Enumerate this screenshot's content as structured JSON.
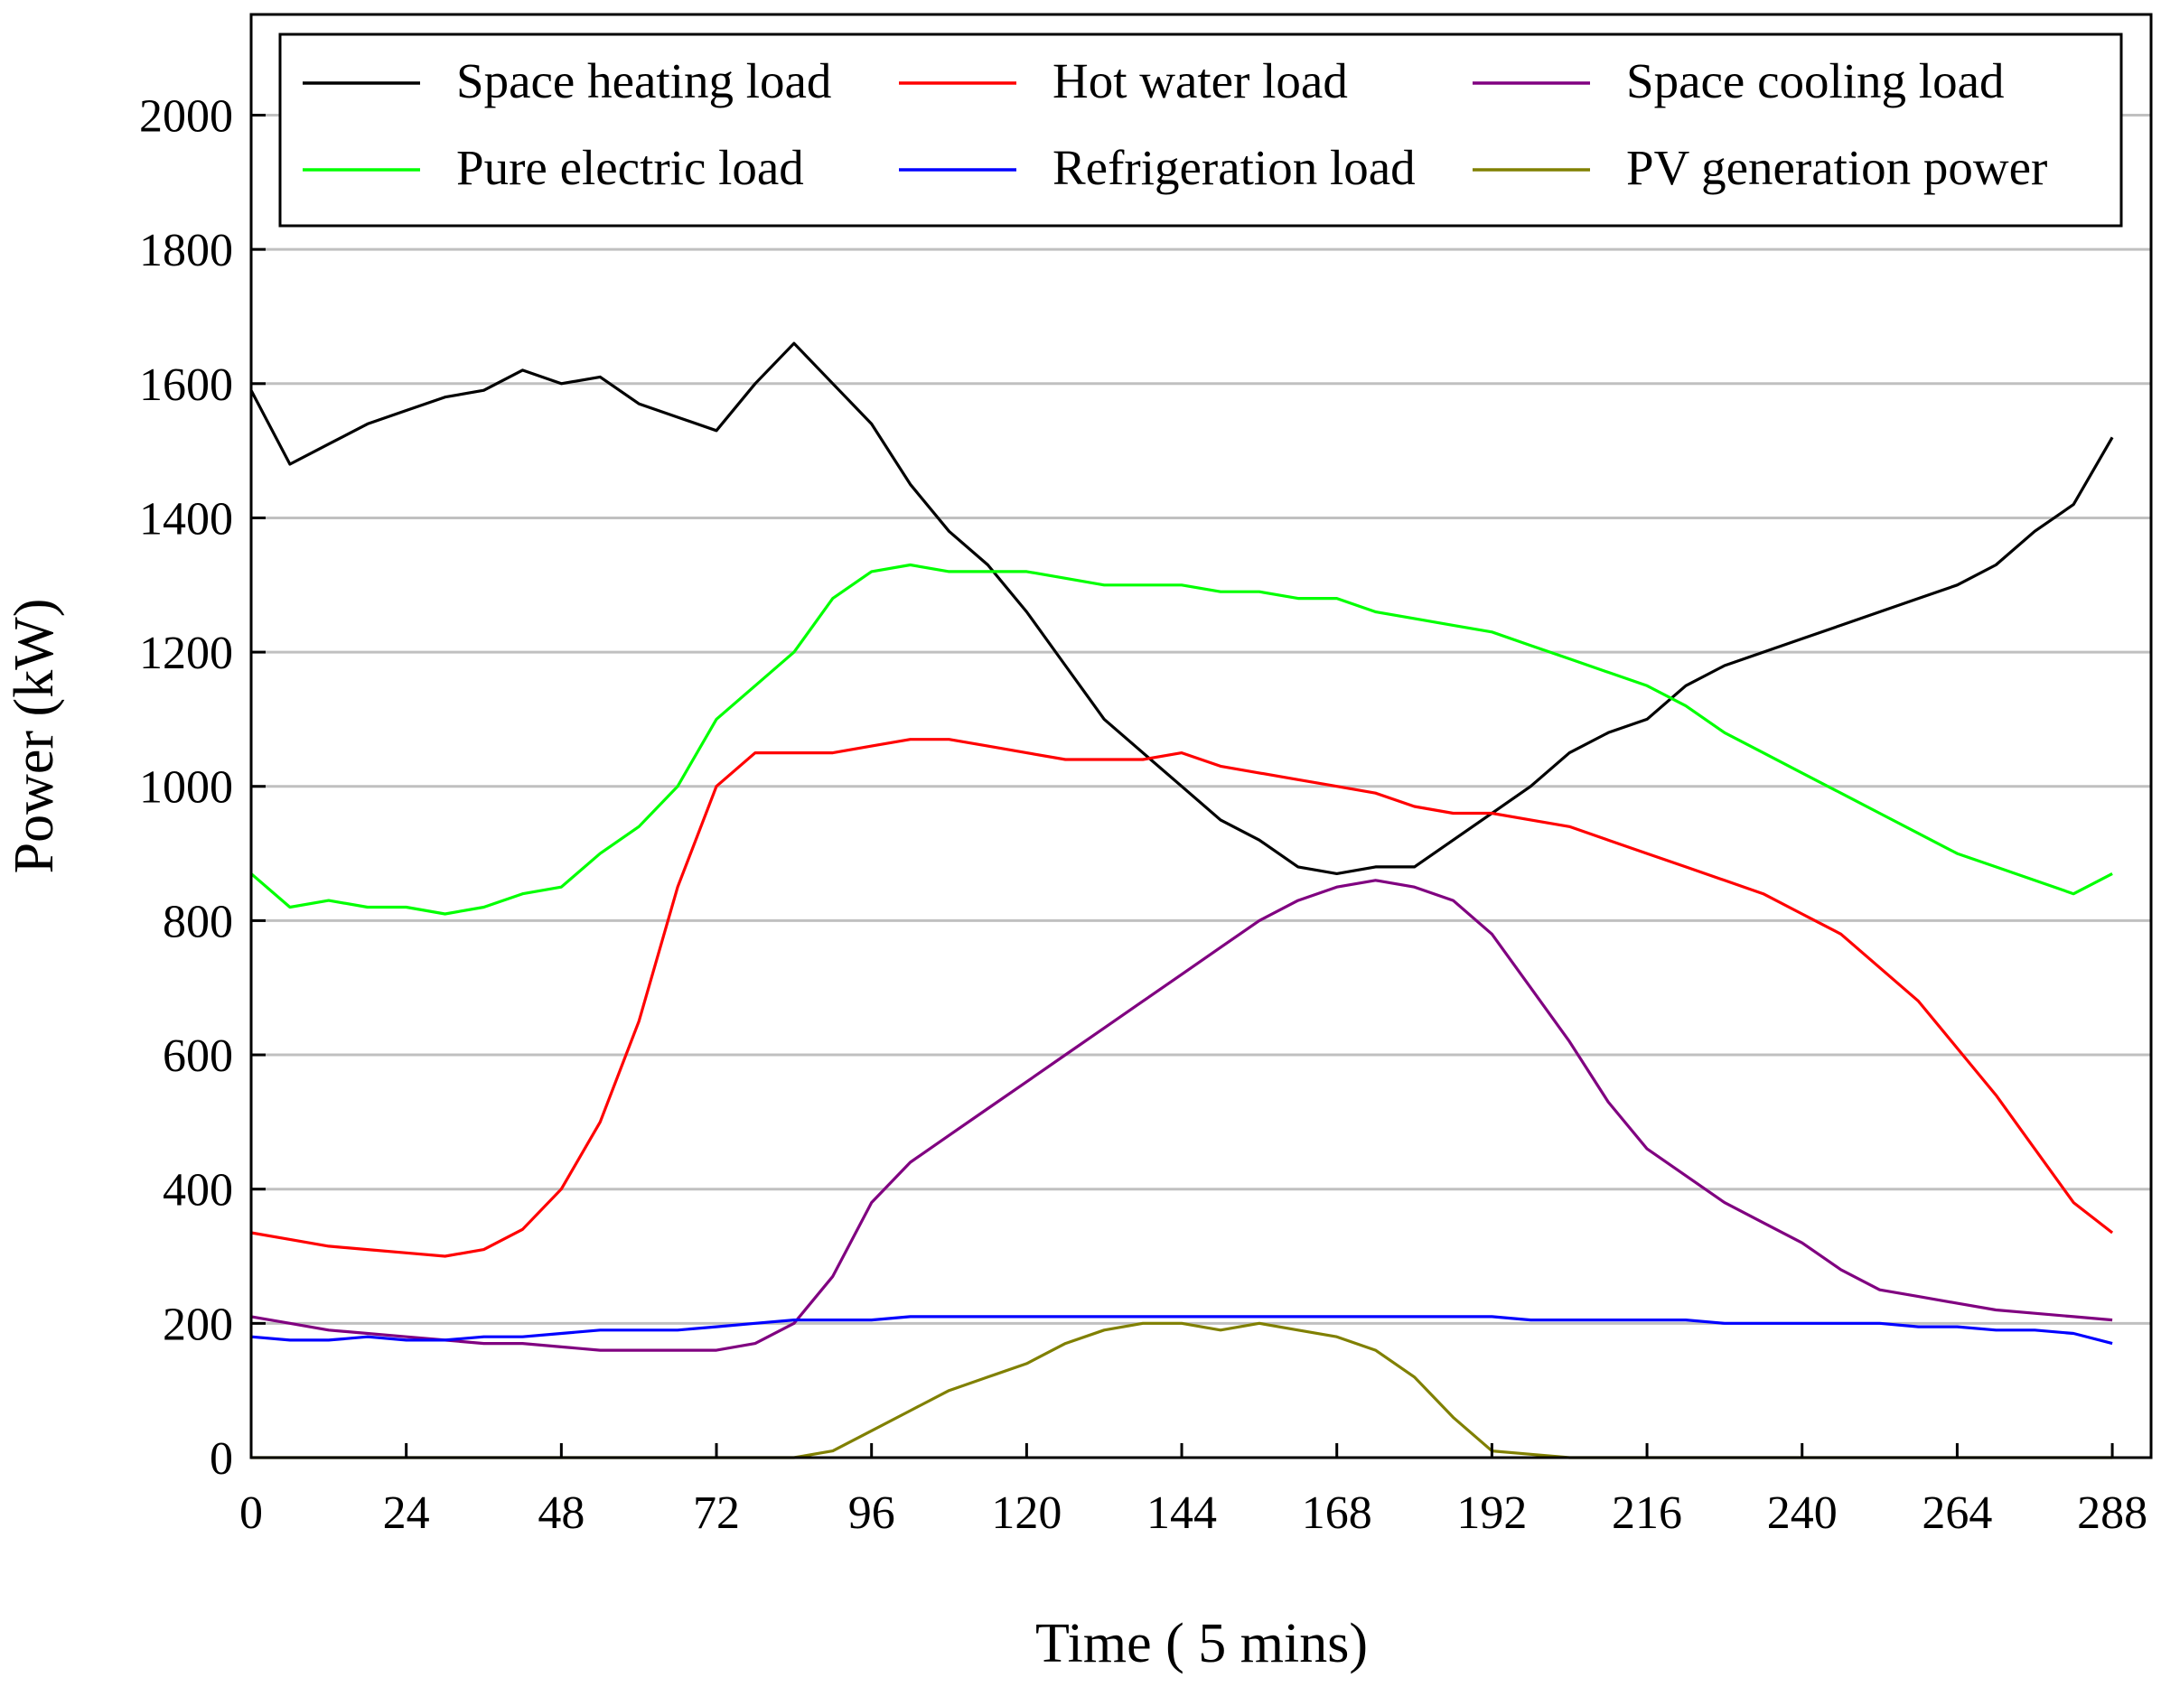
{
  "chart_data": {
    "type": "line",
    "title": "",
    "xlabel": "Time ( 5 mins)",
    "ylabel": "Power (kW)",
    "xlim": [
      0,
      294
    ],
    "ylim": [
      0,
      2150
    ],
    "x_ticks": [
      0,
      24,
      48,
      72,
      96,
      120,
      144,
      168,
      192,
      216,
      240,
      264,
      288
    ],
    "x_tick_labels": [
      "0",
      "24",
      "48",
      "72",
      "96",
      "120",
      "144",
      "168",
      "192",
      "216",
      "240",
      "264",
      "288"
    ],
    "y_ticks": [
      0,
      200,
      400,
      600,
      800,
      1000,
      1200,
      1400,
      1600,
      1800,
      2000
    ],
    "y_tick_labels": [
      "0",
      "200",
      "400",
      "600",
      "800",
      "1000",
      "1200",
      "1400",
      "1600",
      "1800",
      "2000"
    ],
    "grid": "horizontal",
    "legend_position": "top",
    "x": [
      0,
      6,
      12,
      18,
      24,
      30,
      36,
      42,
      48,
      54,
      60,
      66,
      72,
      78,
      84,
      90,
      96,
      102,
      108,
      114,
      120,
      126,
      132,
      138,
      144,
      150,
      156,
      162,
      168,
      174,
      180,
      186,
      192,
      198,
      204,
      210,
      216,
      222,
      228,
      234,
      240,
      246,
      252,
      258,
      264,
      270,
      276,
      282,
      288
    ],
    "series": [
      {
        "name": "Space heating load",
        "color": "#000000",
        "values": [
          1590,
          1480,
          1510,
          1540,
          1560,
          1580,
          1590,
          1620,
          1600,
          1610,
          1570,
          1550,
          1530,
          1600,
          1660,
          1600,
          1540,
          1450,
          1380,
          1330,
          1260,
          1180,
          1100,
          1050,
          1000,
          950,
          920,
          880,
          870,
          880,
          880,
          920,
          960,
          1000,
          1050,
          1080,
          1100,
          1150,
          1180,
          1200,
          1220,
          1240,
          1260,
          1280,
          1300,
          1330,
          1380,
          1420,
          1520
        ]
      },
      {
        "name": "Hot water load",
        "color": "#ff0000",
        "values": [
          335,
          325,
          315,
          310,
          305,
          300,
          310,
          340,
          400,
          500,
          650,
          850,
          1000,
          1050,
          1050,
          1050,
          1060,
          1070,
          1070,
          1060,
          1050,
          1040,
          1040,
          1040,
          1050,
          1030,
          1020,
          1010,
          1000,
          990,
          970,
          960,
          960,
          950,
          940,
          920,
          900,
          880,
          860,
          840,
          810,
          780,
          730,
          680,
          610,
          540,
          460,
          380,
          335
        ]
      },
      {
        "name": "Space cooling load",
        "color": "#800080",
        "values": [
          210,
          200,
          190,
          185,
          180,
          175,
          170,
          170,
          165,
          160,
          160,
          160,
          160,
          170,
          200,
          270,
          380,
          440,
          480,
          520,
          560,
          600,
          640,
          680,
          720,
          760,
          800,
          830,
          850,
          860,
          850,
          830,
          780,
          700,
          620,
          530,
          460,
          420,
          380,
          350,
          320,
          280,
          250,
          240,
          230,
          220,
          215,
          210,
          205
        ]
      },
      {
        "name": "Pure electric load",
        "color": "#00ff00",
        "values": [
          870,
          820,
          830,
          820,
          820,
          810,
          820,
          840,
          850,
          900,
          940,
          1000,
          1100,
          1150,
          1200,
          1280,
          1320,
          1330,
          1320,
          1320,
          1320,
          1310,
          1300,
          1300,
          1300,
          1290,
          1290,
          1280,
          1280,
          1260,
          1250,
          1240,
          1230,
          1210,
          1190,
          1170,
          1150,
          1120,
          1080,
          1050,
          1020,
          990,
          960,
          930,
          900,
          880,
          860,
          840,
          870
        ]
      },
      {
        "name": "Refrigeration load",
        "color": "#0000ff",
        "values": [
          180,
          175,
          175,
          180,
          175,
          175,
          180,
          180,
          185,
          190,
          190,
          190,
          195,
          200,
          205,
          205,
          205,
          210,
          210,
          210,
          210,
          210,
          210,
          210,
          210,
          210,
          210,
          210,
          210,
          210,
          210,
          210,
          210,
          205,
          205,
          205,
          205,
          205,
          200,
          200,
          200,
          200,
          200,
          195,
          195,
          190,
          190,
          185,
          170
        ]
      },
      {
        "name": "PV generation power",
        "color": "#808000",
        "values": [
          0,
          0,
          0,
          0,
          0,
          0,
          0,
          0,
          0,
          0,
          0,
          0,
          0,
          0,
          0,
          10,
          40,
          70,
          100,
          120,
          140,
          170,
          190,
          200,
          200,
          190,
          200,
          190,
          180,
          160,
          120,
          60,
          10,
          5,
          0,
          0,
          0,
          0,
          0,
          0,
          0,
          0,
          0,
          0,
          0,
          0,
          0,
          0,
          0
        ]
      }
    ]
  }
}
